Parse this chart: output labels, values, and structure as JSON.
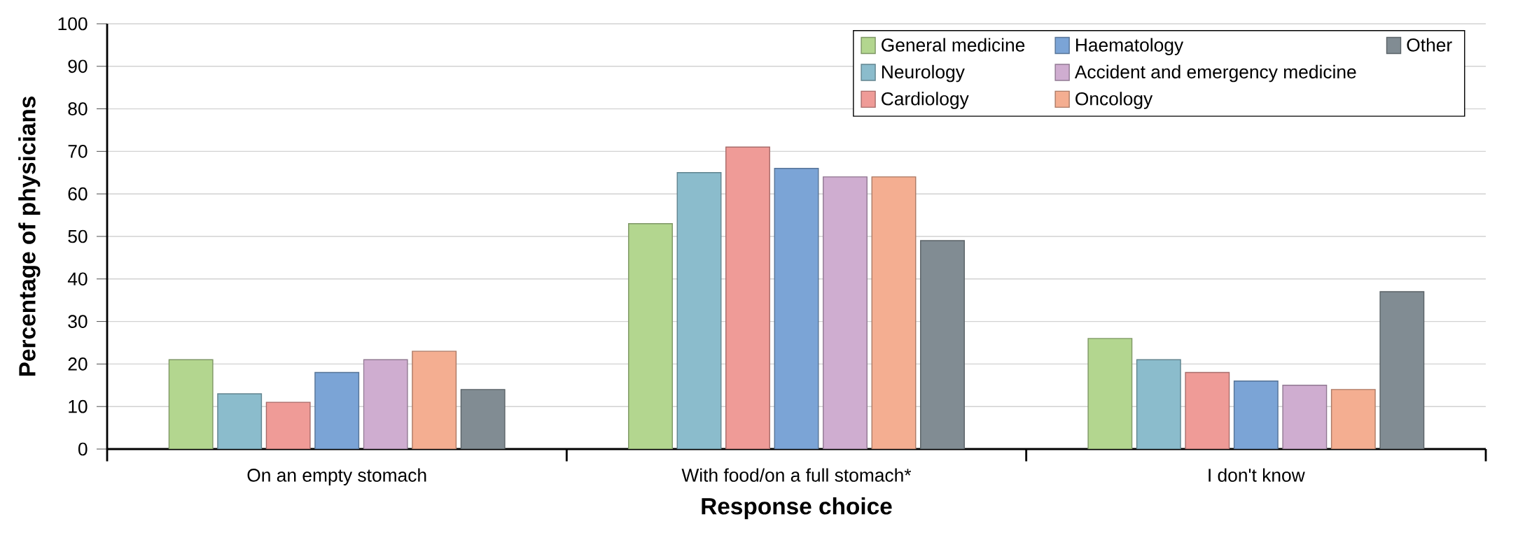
{
  "chart_data": {
    "type": "bar",
    "xlabel": "Response choice",
    "ylabel": "Percentage of physicians",
    "categories": [
      "On an empty stomach",
      "With food/on a full stomach*",
      "I don't know"
    ],
    "series": [
      {
        "name": "General medicine",
        "color": "#b3d68f",
        "values": [
          21,
          53,
          26
        ]
      },
      {
        "name": "Neurology",
        "color": "#8bbccc",
        "values": [
          13,
          65,
          21
        ]
      },
      {
        "name": "Cardiology",
        "color": "#ef9b97",
        "values": [
          11,
          71,
          18
        ]
      },
      {
        "name": "Haematology",
        "color": "#7ba4d6",
        "values": [
          18,
          66,
          16
        ]
      },
      {
        "name": "Accident and emergency medicine",
        "color": "#cfadd0",
        "values": [
          21,
          64,
          15
        ]
      },
      {
        "name": "Oncology",
        "color": "#f4ae91",
        "values": [
          23,
          64,
          14
        ]
      },
      {
        "name": "Other",
        "color": "#818c93",
        "values": [
          14,
          49,
          37
        ]
      }
    ],
    "ylim": [
      0,
      100
    ],
    "yticks": [
      0,
      10,
      20,
      30,
      40,
      50,
      60,
      70,
      80,
      90,
      100
    ],
    "grid": "y",
    "legend": "top right"
  }
}
